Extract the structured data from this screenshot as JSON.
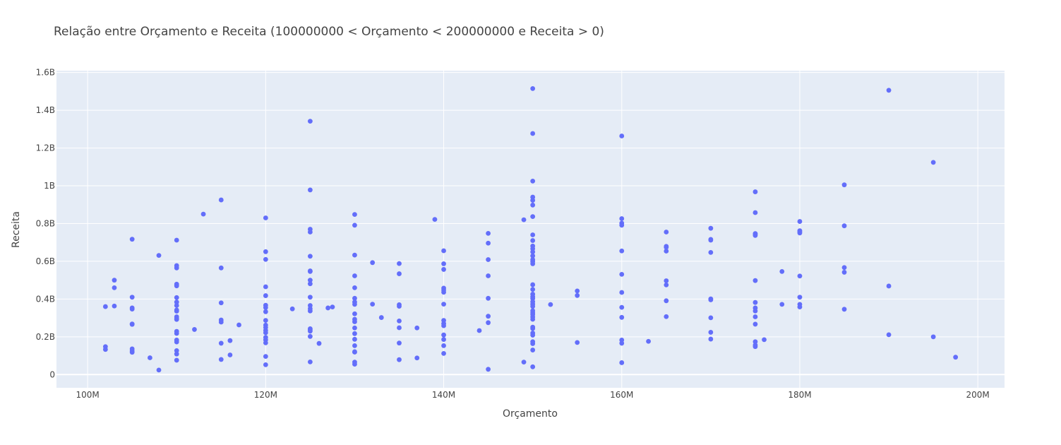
{
  "chart_data": {
    "type": "scatter",
    "title": "Relação entre Orçamento e Receita (100000000 < Orçamento < 200000000 e Receita > 0)",
    "xlabel": "Orçamento",
    "ylabel": "Receita",
    "xlim": [
      96500000,
      203000000
    ],
    "ylim": [
      -70000000,
      1610000000
    ],
    "x_ticks": [
      100000000,
      120000000,
      140000000,
      160000000,
      180000000,
      200000000
    ],
    "x_tick_labels": [
      "100M",
      "120M",
      "140M",
      "160M",
      "180M",
      "200M"
    ],
    "y_ticks": [
      0,
      200000000,
      400000000,
      600000000,
      800000000,
      1000000000,
      1200000000,
      1400000000,
      1600000000
    ],
    "y_tick_labels": [
      "0",
      "0.2B",
      "0.4B",
      "0.6B",
      "0.8B",
      "1B",
      "1.2B",
      "1.4B",
      "1.6B"
    ],
    "grid": true,
    "colors": {
      "marker": "#636efa",
      "plot_bg": "#e5ecf6",
      "grid": "#ffffff",
      "text": "#444444"
    },
    "points": [
      [
        102000000,
        148000000
      ],
      [
        102000000,
        133000000
      ],
      [
        102000000,
        360000000
      ],
      [
        103000000,
        500000000
      ],
      [
        103000000,
        460000000
      ],
      [
        103000000,
        363000000
      ],
      [
        105000000,
        717000000
      ],
      [
        105000000,
        410000000
      ],
      [
        105000000,
        353000000
      ],
      [
        105000000,
        347000000
      ],
      [
        105000000,
        268000000
      ],
      [
        105000000,
        266000000
      ],
      [
        105000000,
        136000000
      ],
      [
        105000000,
        125000000
      ],
      [
        105000000,
        118000000
      ],
      [
        107000000,
        89000000
      ],
      [
        108000000,
        631000000
      ],
      [
        108000000,
        24000000
      ],
      [
        110000000,
        712000000
      ],
      [
        110000000,
        577000000
      ],
      [
        110000000,
        565000000
      ],
      [
        110000000,
        479000000
      ],
      [
        110000000,
        470000000
      ],
      [
        110000000,
        408000000
      ],
      [
        110000000,
        384000000
      ],
      [
        110000000,
        366000000
      ],
      [
        110000000,
        342000000
      ],
      [
        110000000,
        336000000
      ],
      [
        110000000,
        306000000
      ],
      [
        110000000,
        297000000
      ],
      [
        110000000,
        292000000
      ],
      [
        110000000,
        229000000
      ],
      [
        110000000,
        218000000
      ],
      [
        110000000,
        183000000
      ],
      [
        110000000,
        173000000
      ],
      [
        110000000,
        127000000
      ],
      [
        110000000,
        109000000
      ],
      [
        110000000,
        76000000
      ],
      [
        112000000,
        239000000
      ],
      [
        113000000,
        850000000
      ],
      [
        115000000,
        925000000
      ],
      [
        115000000,
        565000000
      ],
      [
        115000000,
        380000000
      ],
      [
        115000000,
        289000000
      ],
      [
        115000000,
        278000000
      ],
      [
        115000000,
        166000000
      ],
      [
        115000000,
        80000000
      ],
      [
        116000000,
        180000000
      ],
      [
        116000000,
        104000000
      ],
      [
        117000000,
        263000000
      ],
      [
        120000000,
        830000000
      ],
      [
        120000000,
        651000000
      ],
      [
        120000000,
        610000000
      ],
      [
        120000000,
        465000000
      ],
      [
        120000000,
        418000000
      ],
      [
        120000000,
        367000000
      ],
      [
        120000000,
        355000000
      ],
      [
        120000000,
        333000000
      ],
      [
        120000000,
        287000000
      ],
      [
        120000000,
        262000000
      ],
      [
        120000000,
        250000000
      ],
      [
        120000000,
        234000000
      ],
      [
        120000000,
        222000000
      ],
      [
        120000000,
        197000000
      ],
      [
        120000000,
        184000000
      ],
      [
        120000000,
        168000000
      ],
      [
        120000000,
        96000000
      ],
      [
        120000000,
        52000000
      ],
      [
        123000000,
        348000000
      ],
      [
        125000000,
        1342000000
      ],
      [
        125000000,
        978000000
      ],
      [
        125000000,
        770000000
      ],
      [
        125000000,
        755000000
      ],
      [
        125000000,
        627000000
      ],
      [
        125000000,
        549000000
      ],
      [
        125000000,
        546000000
      ],
      [
        125000000,
        500000000
      ],
      [
        125000000,
        481000000
      ],
      [
        125000000,
        410000000
      ],
      [
        125000000,
        366000000
      ],
      [
        125000000,
        349000000
      ],
      [
        125000000,
        337000000
      ],
      [
        125000000,
        243000000
      ],
      [
        125000000,
        237000000
      ],
      [
        125000000,
        230000000
      ],
      [
        125000000,
        202000000
      ],
      [
        125000000,
        67000000
      ],
      [
        126000000,
        165000000
      ],
      [
        127000000,
        353000000
      ],
      [
        127500000,
        358000000
      ],
      [
        130000000,
        848000000
      ],
      [
        130000000,
        791000000
      ],
      [
        130000000,
        633000000
      ],
      [
        130000000,
        523000000
      ],
      [
        130000000,
        460000000
      ],
      [
        130000000,
        404000000
      ],
      [
        130000000,
        384000000
      ],
      [
        130000000,
        372000000
      ],
      [
        130000000,
        322000000
      ],
      [
        130000000,
        293000000
      ],
      [
        130000000,
        280000000
      ],
      [
        130000000,
        247000000
      ],
      [
        130000000,
        217000000
      ],
      [
        130000000,
        187000000
      ],
      [
        130000000,
        153000000
      ],
      [
        130000000,
        121000000
      ],
      [
        130000000,
        119000000
      ],
      [
        130000000,
        66000000
      ],
      [
        130000000,
        55000000
      ],
      [
        132000000,
        593000000
      ],
      [
        132000000,
        373000000
      ],
      [
        133000000,
        302000000
      ],
      [
        135000000,
        588000000
      ],
      [
        135000000,
        534000000
      ],
      [
        135000000,
        370000000
      ],
      [
        135000000,
        362000000
      ],
      [
        135000000,
        284000000
      ],
      [
        135000000,
        248000000
      ],
      [
        135000000,
        167000000
      ],
      [
        135000000,
        79000000
      ],
      [
        137000000,
        247000000
      ],
      [
        137000000,
        88000000
      ],
      [
        139000000,
        822000000
      ],
      [
        140000000,
        656000000
      ],
      [
        140000000,
        587000000
      ],
      [
        140000000,
        557000000
      ],
      [
        140000000,
        458000000
      ],
      [
        140000000,
        448000000
      ],
      [
        140000000,
        436000000
      ],
      [
        140000000,
        373000000
      ],
      [
        140000000,
        287000000
      ],
      [
        140000000,
        270000000
      ],
      [
        140000000,
        259000000
      ],
      [
        140000000,
        210000000
      ],
      [
        140000000,
        186000000
      ],
      [
        140000000,
        153000000
      ],
      [
        140000000,
        112000000
      ],
      [
        144000000,
        233000000
      ],
      [
        145000000,
        748000000
      ],
      [
        145000000,
        696000000
      ],
      [
        145000000,
        609000000
      ],
      [
        145000000,
        523000000
      ],
      [
        145000000,
        404000000
      ],
      [
        145000000,
        309000000
      ],
      [
        145000000,
        275000000
      ],
      [
        145000000,
        28000000
      ],
      [
        149000000,
        820000000
      ],
      [
        149000000,
        66000000
      ],
      [
        150000000,
        1515000000
      ],
      [
        150000000,
        1277000000
      ],
      [
        150000000,
        1025000000
      ],
      [
        150000000,
        940000000
      ],
      [
        150000000,
        923000000
      ],
      [
        150000000,
        898000000
      ],
      [
        150000000,
        837000000
      ],
      [
        150000000,
        740000000
      ],
      [
        150000000,
        710000000
      ],
      [
        150000000,
        681000000
      ],
      [
        150000000,
        667000000
      ],
      [
        150000000,
        650000000
      ],
      [
        150000000,
        629000000
      ],
      [
        150000000,
        609000000
      ],
      [
        150000000,
        599000000
      ],
      [
        150000000,
        587000000
      ],
      [
        150000000,
        476000000
      ],
      [
        150000000,
        451000000
      ],
      [
        150000000,
        426000000
      ],
      [
        150000000,
        412000000
      ],
      [
        150000000,
        403000000
      ],
      [
        150000000,
        386000000
      ],
      [
        150000000,
        373000000
      ],
      [
        150000000,
        361000000
      ],
      [
        150000000,
        338000000
      ],
      [
        150000000,
        327000000
      ],
      [
        150000000,
        318000000
      ],
      [
        150000000,
        305000000
      ],
      [
        150000000,
        293000000
      ],
      [
        150000000,
        251000000
      ],
      [
        150000000,
        244000000
      ],
      [
        150000000,
        220000000
      ],
      [
        150000000,
        209000000
      ],
      [
        150000000,
        174000000
      ],
      [
        150000000,
        164000000
      ],
      [
        150000000,
        130000000
      ],
      [
        150000000,
        41000000
      ],
      [
        152000000,
        371000000
      ],
      [
        155000000,
        443000000
      ],
      [
        155000000,
        419000000
      ],
      [
        155000000,
        170000000
      ],
      [
        160000000,
        1264000000
      ],
      [
        160000000,
        826000000
      ],
      [
        160000000,
        802000000
      ],
      [
        160000000,
        791000000
      ],
      [
        160000000,
        655000000
      ],
      [
        160000000,
        531000000
      ],
      [
        160000000,
        435000000
      ],
      [
        160000000,
        356000000
      ],
      [
        160000000,
        303000000
      ],
      [
        160000000,
        183000000
      ],
      [
        160000000,
        166000000
      ],
      [
        160000000,
        63000000
      ],
      [
        163000000,
        176000000
      ],
      [
        165000000,
        755000000
      ],
      [
        165000000,
        679000000
      ],
      [
        165000000,
        674000000
      ],
      [
        165000000,
        654000000
      ],
      [
        165000000,
        497000000
      ],
      [
        165000000,
        475000000
      ],
      [
        165000000,
        391000000
      ],
      [
        165000000,
        307000000
      ],
      [
        170000000,
        775000000
      ],
      [
        170000000,
        716000000
      ],
      [
        170000000,
        712000000
      ],
      [
        170000000,
        647000000
      ],
      [
        170000000,
        401000000
      ],
      [
        170000000,
        396000000
      ],
      [
        170000000,
        301000000
      ],
      [
        170000000,
        224000000
      ],
      [
        170000000,
        188000000
      ],
      [
        175000000,
        968000000
      ],
      [
        175000000,
        858000000
      ],
      [
        175000000,
        747000000
      ],
      [
        175000000,
        743000000
      ],
      [
        175000000,
        737000000
      ],
      [
        175000000,
        498000000
      ],
      [
        175000000,
        382000000
      ],
      [
        175000000,
        353000000
      ],
      [
        175000000,
        337000000
      ],
      [
        175000000,
        306000000
      ],
      [
        175000000,
        267000000
      ],
      [
        175000000,
        174000000
      ],
      [
        175000000,
        156000000
      ],
      [
        175000000,
        148000000
      ],
      [
        176000000,
        185000000
      ],
      [
        178000000,
        546000000
      ],
      [
        178000000,
        372000000
      ],
      [
        180000000,
        811000000
      ],
      [
        180000000,
        762000000
      ],
      [
        180000000,
        756000000
      ],
      [
        180000000,
        750000000
      ],
      [
        180000000,
        522000000
      ],
      [
        180000000,
        410000000
      ],
      [
        180000000,
        372000000
      ],
      [
        180000000,
        358000000
      ],
      [
        185000000,
        1005000000
      ],
      [
        185000000,
        788000000
      ],
      [
        185000000,
        567000000
      ],
      [
        185000000,
        542000000
      ],
      [
        185000000,
        346000000
      ],
      [
        190000000,
        1506000000
      ],
      [
        190000000,
        469000000
      ],
      [
        190000000,
        211000000
      ],
      [
        195000000,
        1124000000
      ],
      [
        195000000,
        200000000
      ],
      [
        197500000,
        92000000
      ]
    ]
  }
}
